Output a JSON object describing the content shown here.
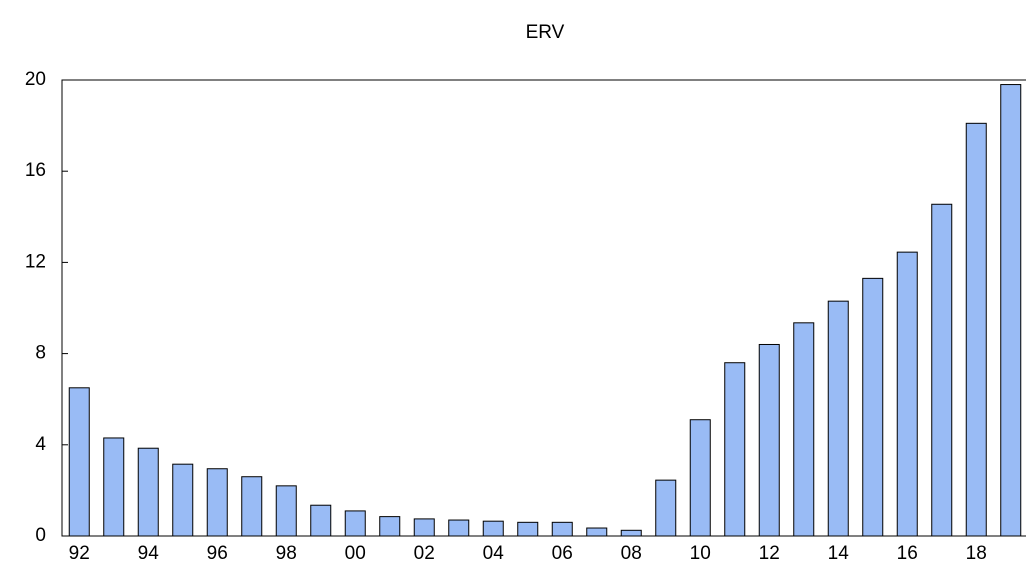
{
  "chart_data": {
    "type": "bar",
    "title": "ERV",
    "categories": [
      "92",
      null,
      "94",
      null,
      "96",
      null,
      "98",
      null,
      "00",
      null,
      "02",
      null,
      "04",
      null,
      "06",
      null,
      "08",
      null,
      "10",
      null,
      "12",
      null,
      "14",
      null,
      "16",
      null,
      "18",
      null
    ],
    "values": [
      6.5,
      4.3,
      3.85,
      3.15,
      2.95,
      2.6,
      2.2,
      1.35,
      1.1,
      0.85,
      0.75,
      0.7,
      0.65,
      0.6,
      0.6,
      0.35,
      0.25,
      2.45,
      5.1,
      7.6,
      8.4,
      9.35,
      10.3,
      11.3,
      12.45,
      14.55,
      18.1,
      19.8
    ],
    "color": "#99bbf5",
    "ylim": [
      0,
      20
    ],
    "yticks": [
      0,
      4,
      8,
      12,
      16,
      20
    ],
    "grid": false
  }
}
